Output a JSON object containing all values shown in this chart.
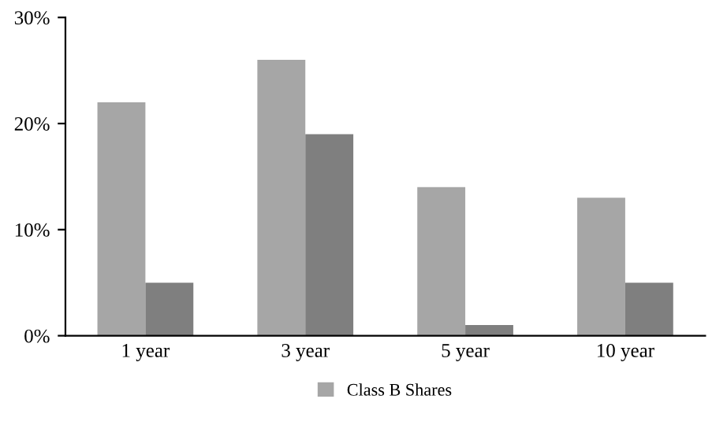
{
  "chart_data": {
    "type": "bar",
    "categories": [
      "1 year",
      "3 year",
      "5 year",
      "10 year"
    ],
    "series": [
      {
        "name": "Class B Shares",
        "color": "#a6a6a6",
        "values": [
          22,
          26,
          14,
          13
        ]
      },
      {
        "color": "#7f7f7f",
        "values": [
          5,
          19,
          1,
          5
        ]
      }
    ],
    "ylim": [
      0,
      30
    ],
    "yticks": [
      {
        "value": 0,
        "label": "0%"
      },
      {
        "value": 10,
        "label": "10%"
      },
      {
        "value": 20,
        "label": "20%"
      },
      {
        "value": 30,
        "label": "30%"
      }
    ],
    "grid": false,
    "legend": "bottom"
  }
}
